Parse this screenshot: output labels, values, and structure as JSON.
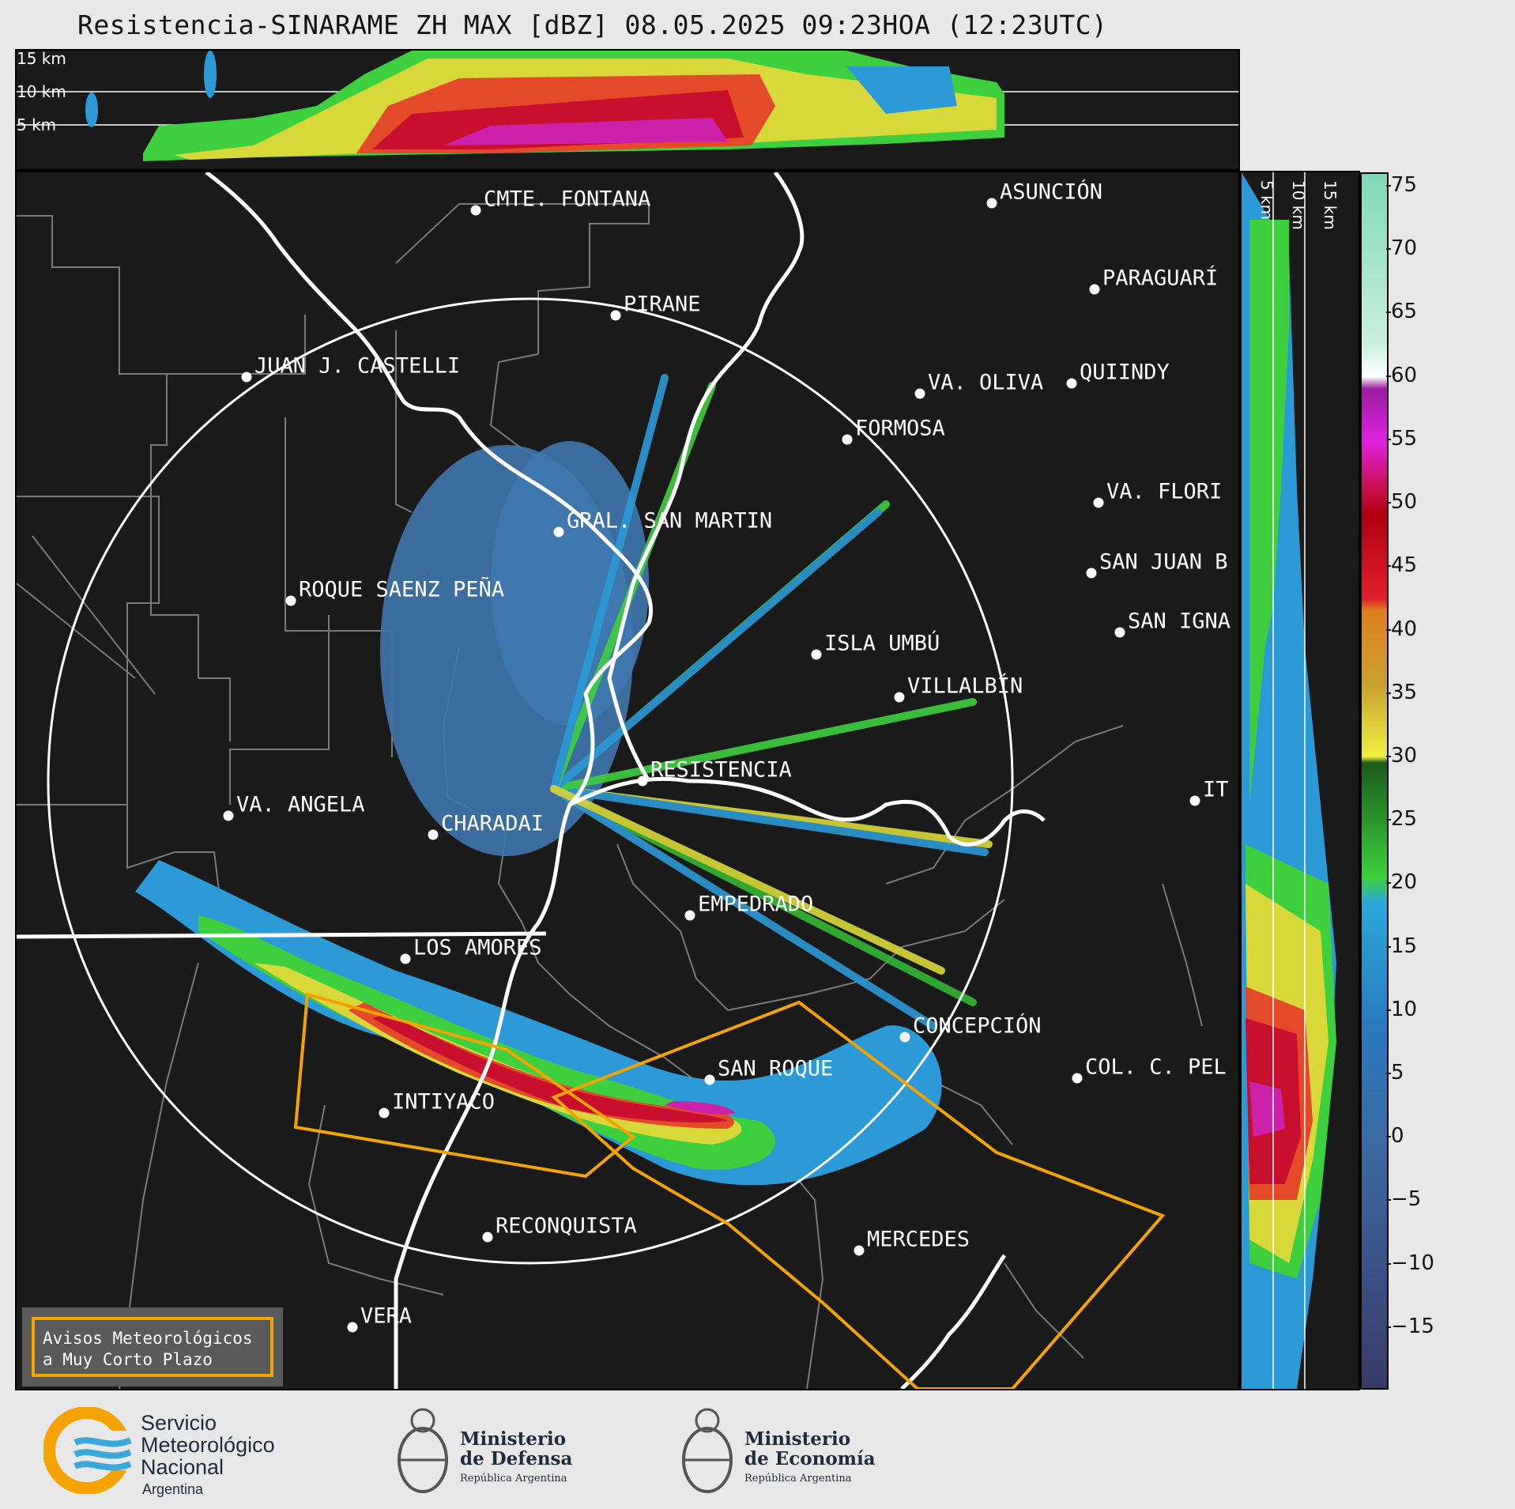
{
  "title": "Resistencia-SINARAME ZH MAX [dBZ] 08.05.2025 09:23HOA (12:23UTC)",
  "top_panel": {
    "alt_labels": [
      "15 km",
      "10 km",
      "5 km"
    ]
  },
  "side_panel": {
    "alt_labels": [
      "5 km",
      "10 km",
      "15 km"
    ]
  },
  "colorbar": {
    "ticks": [
      75,
      70,
      65,
      60,
      55,
      50,
      45,
      40,
      35,
      30,
      25,
      20,
      15,
      10,
      5,
      0,
      "−5",
      "−10",
      "−15"
    ],
    "min": -20,
    "max": 76
  },
  "cities": [
    {
      "name": "CMTE. FONTANA"
    },
    {
      "name": "ASUNCIÓN"
    },
    {
      "name": "PARAGUARÍ"
    },
    {
      "name": "PIRANE"
    },
    {
      "name": "JUAN J. CASTELLI"
    },
    {
      "name": "VA. OLIVA"
    },
    {
      "name": "QUIINDY"
    },
    {
      "name": "FORMOSA"
    },
    {
      "name": "VA. FLORI"
    },
    {
      "name": "GRAL. SAN MARTIN"
    },
    {
      "name": "SAN JUAN B"
    },
    {
      "name": "ROQUE SAENZ PEÑA"
    },
    {
      "name": "SAN IGNA"
    },
    {
      "name": "ISLA UMBÚ"
    },
    {
      "name": "VILLALBÍN"
    },
    {
      "name": "RESISTENCIA"
    },
    {
      "name": "IT"
    },
    {
      "name": "VA. ANGELA"
    },
    {
      "name": "CHARADAI"
    },
    {
      "name": "EMPEDRADO"
    },
    {
      "name": "LOS AMORES"
    },
    {
      "name": "CONCEPCIÓN"
    },
    {
      "name": "SAN ROQUE"
    },
    {
      "name": "COL. C. PEL"
    },
    {
      "name": "INTIYACO"
    },
    {
      "name": "RECONQUISTA"
    },
    {
      "name": "MERCEDES"
    },
    {
      "name": "VERA"
    }
  ],
  "legend": {
    "line1": "Avisos Meteorológicos",
    "line2": "a Muy Corto Plazo"
  },
  "footer": {
    "smn": [
      "Servicio",
      "Meteorológico",
      "Nacional",
      "Argentina"
    ],
    "defensa": [
      "Ministerio",
      "de Defensa",
      "República Argentina"
    ],
    "economia": [
      "Ministerio",
      "de Economía",
      "República Argentina"
    ]
  }
}
